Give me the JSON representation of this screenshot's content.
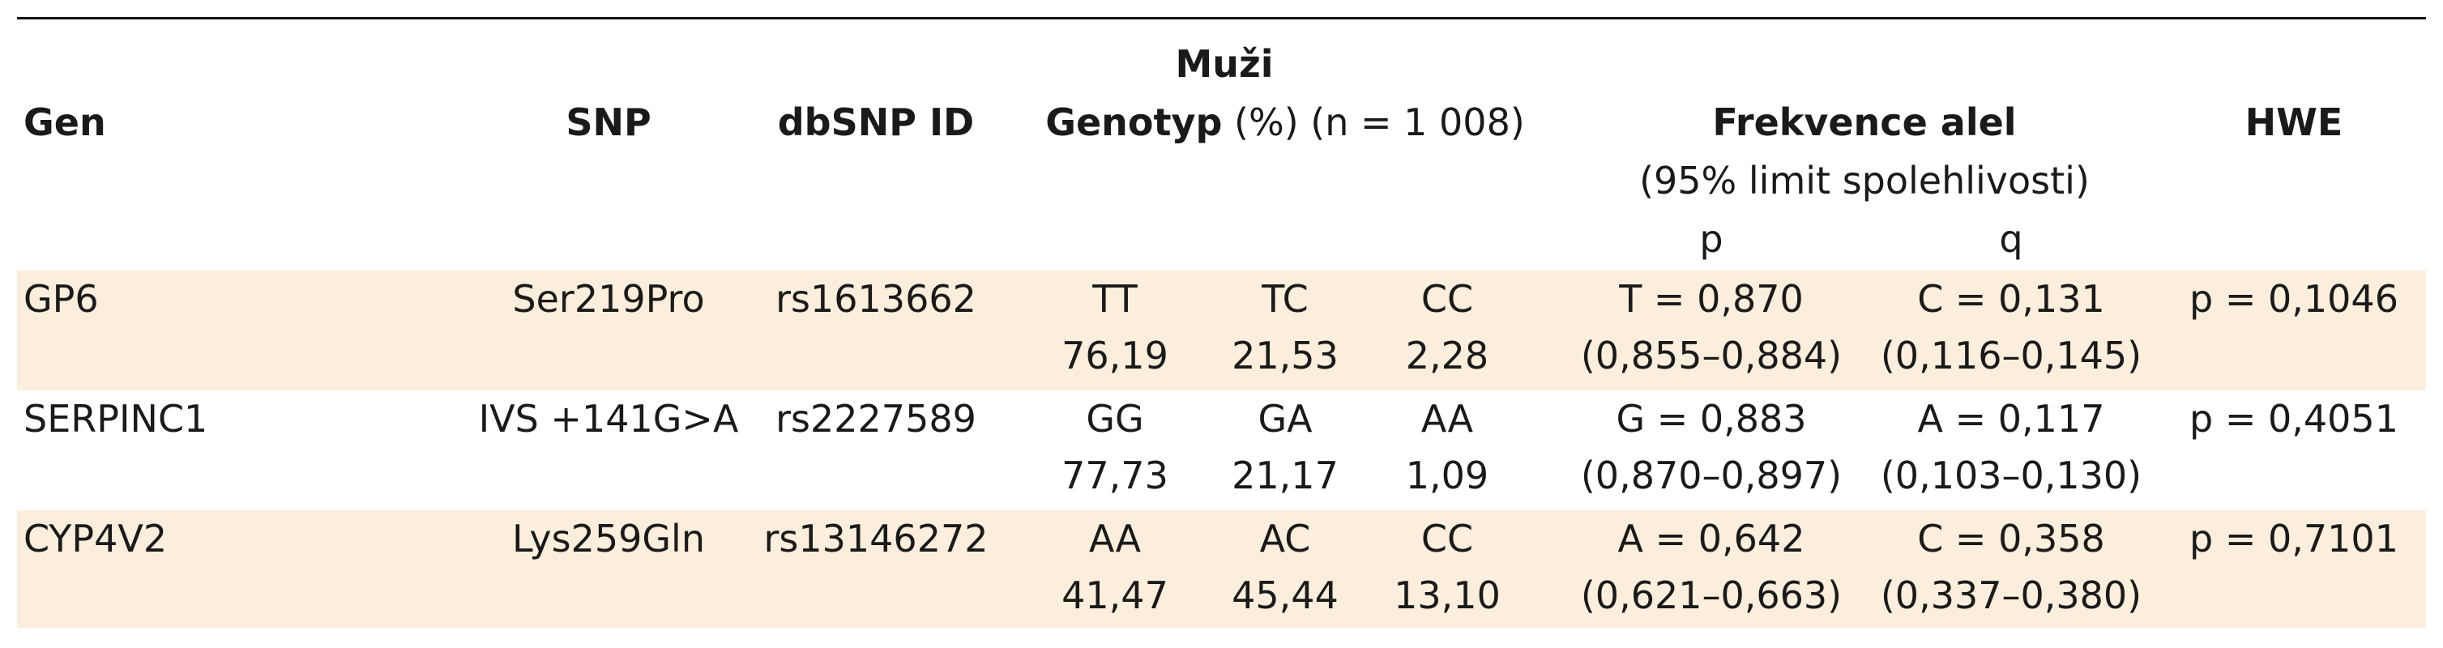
{
  "header": {
    "group_label": "Muži",
    "col_gen": "Gen",
    "col_snp": "SNP",
    "col_dbsnp": "dbSNP ID",
    "col_genotyp_bold": "Genotyp",
    "col_genotyp_rest": " (%) (n = 1 008)",
    "col_frekvence": "Frekvence alel",
    "col_frekvence_sub": "(95% limit spolehlivosti)",
    "col_p": "p",
    "col_q": "q",
    "col_hwe": "HWE"
  },
  "rows": [
    {
      "gen": "GP6",
      "snp": "Ser219Pro",
      "dbsnp": "rs1613662",
      "g1_label": "TT",
      "g2_label": "TC",
      "g3_label": "CC",
      "g1_pct": "76,19",
      "g2_pct": "21,53",
      "g3_pct": "2,28",
      "p_val": "T = 0,870",
      "p_ci": "(0,855–0,884)",
      "q_val": "C = 0,131",
      "q_ci": "(0,116–0,145)",
      "hwe": "p = 0,1046"
    },
    {
      "gen": "SERPINC1",
      "snp": "IVS +141G>A",
      "dbsnp": "rs2227589",
      "g1_label": "GG",
      "g2_label": "GA",
      "g3_label": "AA",
      "g1_pct": "77,73",
      "g2_pct": "21,17",
      "g3_pct": "1,09",
      "p_val": "G = 0,883",
      "p_ci": "(0,870–0,897)",
      "q_val": "A = 0,117",
      "q_ci": "(0,103–0,130)",
      "hwe": "p = 0,4051"
    },
    {
      "gen": "CYP4V2",
      "snp": "Lys259Gln",
      "dbsnp": "rs13146272",
      "g1_label": "AA",
      "g2_label": "AC",
      "g3_label": "CC",
      "g1_pct": "41,47",
      "g2_pct": "45,44",
      "g3_pct": "13,10",
      "p_val": "A = 0,642",
      "p_ci": "(0,621–0,663)",
      "q_val": "C = 0,358",
      "q_ci": "(0,337–0,380)",
      "hwe": "p = 0,7101"
    }
  ],
  "colors": {
    "row_shade": "#fbeedc",
    "rule": "#111111",
    "text": "#1a1a1a"
  }
}
